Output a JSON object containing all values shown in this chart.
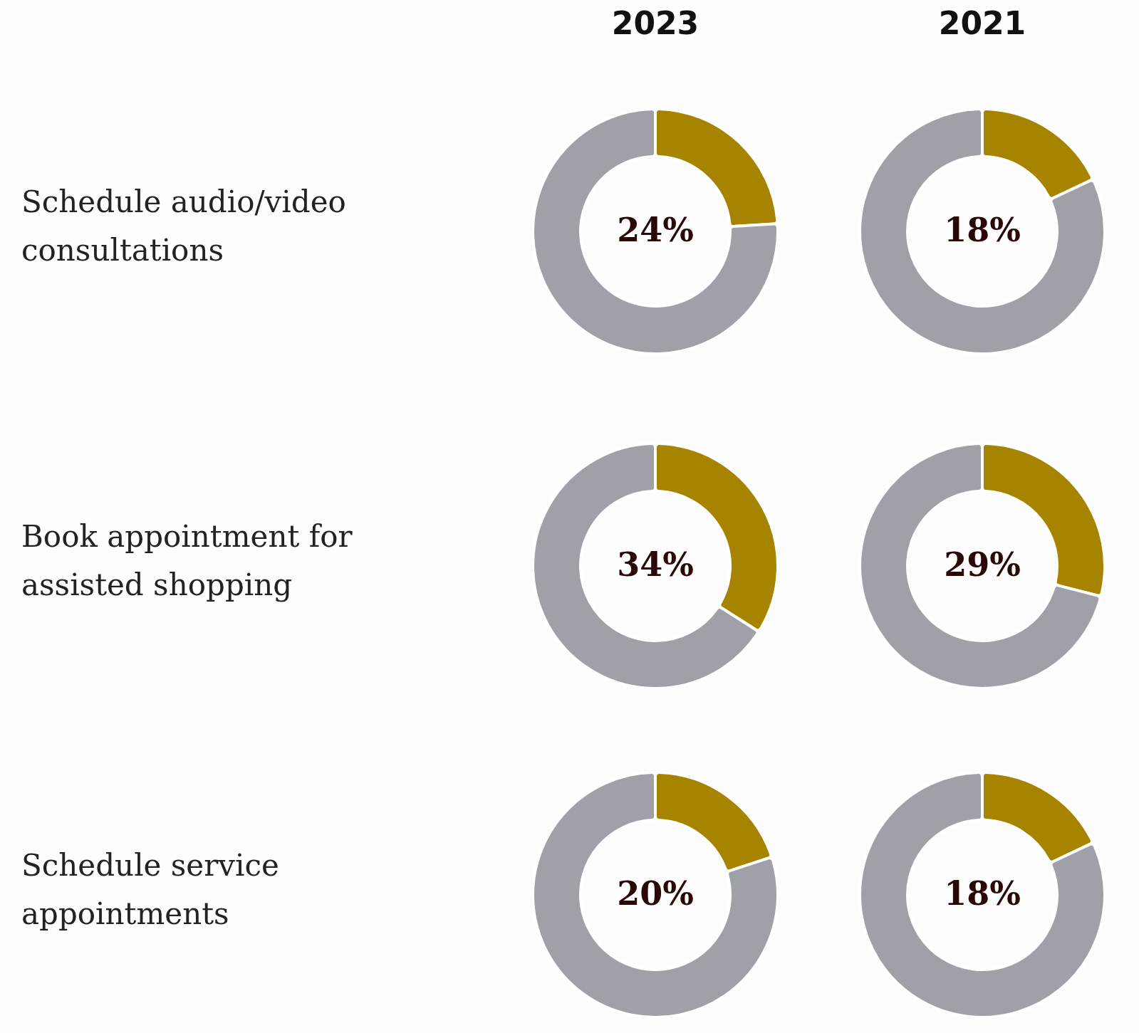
{
  "chart_data": [
    {
      "type": "donut",
      "title": "2023",
      "ylabel": "Schedule audio/video consultations",
      "categories": [
        null,
        null
      ],
      "values": [
        24,
        76
      ],
      "colors": [
        "#a68400",
        "#a0a0a8"
      ],
      "value_labels": [
        "24%",
        null
      ]
    },
    {
      "type": "donut",
      "title": "2021",
      "categories": [
        null,
        null
      ],
      "values": [
        18,
        82
      ],
      "colors": [
        "#a68400",
        "#a0a0a8"
      ],
      "value_labels": [
        "18%",
        null
      ]
    },
    {
      "type": "donut",
      "ylabel": "Book appointment for assisted shopping",
      "categories": [
        null,
        null
      ],
      "values": [
        34,
        66
      ],
      "colors": [
        "#a68400",
        "#a0a0a8"
      ],
      "value_labels": [
        "34%",
        null
      ]
    },
    {
      "type": "donut",
      "categories": [
        null,
        null
      ],
      "values": [
        29,
        71
      ],
      "colors": [
        "#a68400",
        "#a0a0a8"
      ],
      "value_labels": [
        "29%",
        null
      ]
    },
    {
      "type": "donut",
      "ylabel": "Schedule service appointments",
      "categories": [
        null,
        null
      ],
      "values": [
        20,
        80
      ],
      "colors": [
        "#a68400",
        "#a0a0a8"
      ],
      "value_labels": [
        "20%",
        null
      ]
    },
    {
      "type": "donut",
      "categories": [
        null,
        null
      ],
      "values": [
        18,
        82
      ],
      "colors": [
        "#a68400",
        "#a0a0a8"
      ],
      "value_labels": [
        "18%",
        null
      ]
    }
  ]
}
